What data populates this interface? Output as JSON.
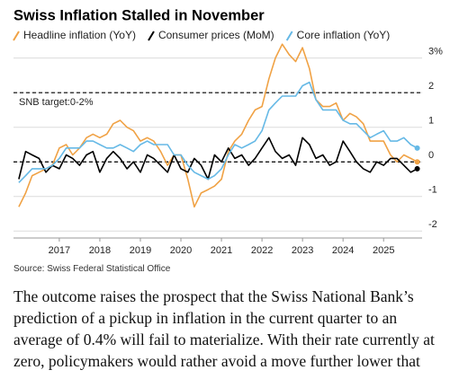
{
  "chart_data": {
    "type": "line",
    "title": "Swiss Inflation Stalled in November",
    "x": [
      2016,
      2016.17,
      2016.33,
      2016.5,
      2016.67,
      2016.83,
      2017,
      2017.17,
      2017.33,
      2017.5,
      2017.67,
      2017.83,
      2018,
      2018.17,
      2018.33,
      2018.5,
      2018.67,
      2018.83,
      2019,
      2019.17,
      2019.33,
      2019.5,
      2019.67,
      2019.83,
      2020,
      2020.17,
      2020.33,
      2020.5,
      2020.67,
      2020.83,
      2021,
      2021.17,
      2021.33,
      2021.5,
      2021.67,
      2021.83,
      2022,
      2022.17,
      2022.33,
      2022.5,
      2022.67,
      2022.83,
      2023,
      2023.17,
      2023.33,
      2023.5,
      2023.67,
      2023.83,
      2024,
      2024.17,
      2024.33,
      2024.5,
      2024.67,
      2024.83,
      2025,
      2025.17,
      2025.33,
      2025.5,
      2025.67,
      2025.83
    ],
    "series": [
      {
        "name": "Headline inflation (YoY)",
        "color": "#f0a245",
        "values": [
          -1.3,
          -0.9,
          -0.4,
          -0.3,
          -0.2,
          -0.1,
          0.4,
          0.5,
          0.2,
          0.4,
          0.7,
          0.8,
          0.7,
          0.8,
          1.1,
          1.2,
          1.0,
          0.9,
          0.6,
          0.7,
          0.6,
          0.3,
          -0.1,
          0.2,
          0.2,
          -0.5,
          -1.3,
          -0.9,
          -0.8,
          -0.7,
          -0.5,
          0.3,
          0.6,
          0.8,
          1.2,
          1.5,
          1.6,
          2.4,
          3.0,
          3.4,
          3.1,
          2.9,
          3.3,
          2.7,
          1.8,
          1.6,
          1.6,
          1.7,
          1.2,
          1.4,
          1.3,
          1.1,
          0.6,
          0.6,
          0.6,
          0.2,
          0.0,
          0.2,
          0.1,
          0.0
        ]
      },
      {
        "name": "Consumer prices (MoM)",
        "color": "#000000",
        "values": [
          -0.5,
          0.3,
          0.2,
          0.1,
          -0.3,
          -0.1,
          -0.2,
          0.2,
          0.1,
          -0.1,
          0.2,
          0.3,
          -0.3,
          0.1,
          0.3,
          0.1,
          -0.2,
          0.0,
          -0.3,
          0.2,
          0.1,
          -0.1,
          -0.3,
          0.2,
          -0.2,
          -0.3,
          0.1,
          -0.1,
          -0.5,
          0.2,
          0.0,
          0.4,
          0.1,
          0.2,
          -0.1,
          0.1,
          0.4,
          0.7,
          0.3,
          0.1,
          0.2,
          -0.1,
          0.7,
          0.5,
          0.1,
          0.2,
          -0.1,
          0.0,
          0.6,
          0.3,
          0.0,
          -0.2,
          -0.3,
          0.0,
          -0.1,
          0.1,
          0.1,
          -0.1,
          -0.3,
          -0.2
        ]
      },
      {
        "name": "Core inflation (YoY)",
        "color": "#66b9e6",
        "values": [
          -0.6,
          -0.4,
          -0.2,
          -0.2,
          -0.2,
          -0.1,
          0.1,
          0.4,
          0.4,
          0.4,
          0.6,
          0.6,
          0.5,
          0.4,
          0.4,
          0.5,
          0.4,
          0.3,
          0.5,
          0.6,
          0.5,
          0.5,
          0.5,
          0.2,
          0.2,
          -0.1,
          -0.3,
          -0.4,
          -0.5,
          -0.4,
          -0.2,
          0.2,
          0.5,
          0.4,
          0.5,
          0.6,
          0.9,
          1.5,
          1.7,
          1.9,
          1.9,
          1.9,
          2.2,
          2.3,
          1.8,
          1.5,
          1.5,
          1.5,
          1.2,
          1.1,
          1.1,
          0.9,
          0.7,
          0.8,
          0.9,
          0.6,
          0.6,
          0.7,
          0.5,
          0.4
        ]
      }
    ],
    "xlim": [
      2015.87,
      2025.95
    ],
    "xticks": [
      2017,
      2018,
      2019,
      2020,
      2021,
      2022,
      2023,
      2024,
      2025
    ],
    "ylim": [
      -2.2,
      3.25
    ],
    "yticks": [
      {
        "value": 3,
        "label": "3%"
      },
      2,
      1,
      0,
      -1,
      -2
    ],
    "grid": true,
    "reference_lines": [
      0,
      2
    ],
    "annotation": "SNB target:0-2%"
  },
  "source": "Source: Swiss Federal Statistical Office",
  "body_text": "The outcome raises the prospect that the Swiss National Bank’s prediction of a pickup in inflation in the current quarter to an average of 0.4% will fail to materialize. With their rate currently at zero, policymakers would rather avoid a move further lower that"
}
